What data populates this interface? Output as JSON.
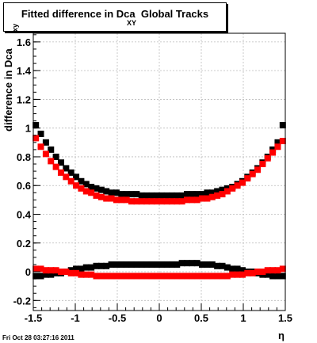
{
  "title": {
    "main": "Fitted difference in Dca  Global Tracks",
    "sub": "XY"
  },
  "footer": "Fri Oct 28 03:27:16 2011",
  "colors": {
    "series_a": "#000000",
    "series_b": "#ff0000",
    "grid": "#bbbbbb"
  },
  "chart_data": {
    "type": "scatter",
    "title": "Fitted difference in Dca XY Global Tracks",
    "xlabel": "η",
    "ylabel": "difference in Dca",
    "ylabel_sub": "xy",
    "xlim": [
      -1.5,
      1.5
    ],
    "ylim": [
      -0.27,
      1.66
    ],
    "grid": true,
    "x_ticks": [
      -1.5,
      -1,
      -0.5,
      0,
      0.5,
      1,
      1.5
    ],
    "x_tick_labels": [
      "-1.5",
      "-1",
      "-0.5",
      "0",
      "0.5",
      "1",
      "1.5"
    ],
    "y_ticks": [
      -0.2,
      0,
      0.2,
      0.4,
      0.6,
      0.8,
      1,
      1.2,
      1.4,
      1.6
    ],
    "y_tick_labels": [
      "-0.2",
      "0",
      "0.2",
      "0.4",
      "0.6",
      "0.8",
      "1",
      "1.2",
      "1.4",
      "1.6"
    ],
    "x": [
      -1.47,
      -1.41,
      -1.35,
      -1.29,
      -1.23,
      -1.17,
      -1.11,
      -1.05,
      -0.99,
      -0.93,
      -0.87,
      -0.81,
      -0.75,
      -0.69,
      -0.63,
      -0.57,
      -0.51,
      -0.45,
      -0.39,
      -0.33,
      -0.27,
      -0.21,
      -0.15,
      -0.09,
      -0.03,
      0.03,
      0.09,
      0.15,
      0.21,
      0.27,
      0.33,
      0.39,
      0.45,
      0.51,
      0.57,
      0.63,
      0.69,
      0.75,
      0.81,
      0.87,
      0.93,
      0.99,
      1.05,
      1.11,
      1.17,
      1.23,
      1.29,
      1.35,
      1.41,
      1.47
    ],
    "series": [
      {
        "color": "#000000",
        "values": [
          1.02,
          0.96,
          0.9,
          0.85,
          0.8,
          0.76,
          0.72,
          0.69,
          0.66,
          0.63,
          0.61,
          0.59,
          0.58,
          0.57,
          0.56,
          0.55,
          0.55,
          0.54,
          0.54,
          0.54,
          0.54,
          0.53,
          0.53,
          0.53,
          0.53,
          0.53,
          0.53,
          0.53,
          0.53,
          0.53,
          0.54,
          0.54,
          0.54,
          0.54,
          0.55,
          0.55,
          0.56,
          0.57,
          0.58,
          0.59,
          0.61,
          0.63,
          0.66,
          0.69,
          0.72,
          0.76,
          0.8,
          0.85,
          0.9,
          1.02
        ]
      },
      {
        "color": "#ff0000",
        "values": [
          0.93,
          0.87,
          0.82,
          0.77,
          0.73,
          0.69,
          0.66,
          0.63,
          0.6,
          0.58,
          0.56,
          0.55,
          0.53,
          0.52,
          0.51,
          0.51,
          0.5,
          0.5,
          0.5,
          0.49,
          0.49,
          0.49,
          0.49,
          0.49,
          0.49,
          0.49,
          0.49,
          0.49,
          0.49,
          0.49,
          0.5,
          0.5,
          0.5,
          0.51,
          0.51,
          0.52,
          0.53,
          0.54,
          0.56,
          0.58,
          0.6,
          0.62,
          0.65,
          0.68,
          0.71,
          0.75,
          0.79,
          0.83,
          0.87,
          0.91
        ]
      },
      {
        "color": "#000000",
        "values": [
          -0.03,
          -0.03,
          -0.02,
          -0.02,
          -0.01,
          -0.01,
          0.0,
          0.01,
          0.02,
          0.02,
          0.03,
          0.03,
          0.04,
          0.04,
          0.04,
          0.05,
          0.05,
          0.05,
          0.05,
          0.05,
          0.05,
          0.05,
          0.05,
          0.05,
          0.05,
          0.05,
          0.05,
          0.05,
          0.05,
          0.06,
          0.06,
          0.06,
          0.06,
          0.05,
          0.05,
          0.05,
          0.04,
          0.04,
          0.03,
          0.02,
          0.02,
          0.01,
          0.0,
          0.0,
          -0.01,
          -0.02,
          -0.02,
          -0.03,
          -0.03,
          -0.03
        ]
      },
      {
        "color": "#ff0000",
        "values": [
          0.02,
          0.02,
          0.01,
          0.01,
          0.01,
          0.0,
          0.0,
          -0.01,
          -0.01,
          -0.02,
          -0.02,
          -0.02,
          -0.03,
          -0.03,
          -0.03,
          -0.03,
          -0.03,
          -0.03,
          -0.03,
          -0.03,
          -0.03,
          -0.03,
          -0.03,
          -0.03,
          -0.03,
          -0.03,
          -0.03,
          -0.03,
          -0.03,
          -0.03,
          -0.03,
          -0.03,
          -0.03,
          -0.03,
          -0.03,
          -0.03,
          -0.03,
          -0.03,
          -0.03,
          -0.02,
          -0.02,
          -0.02,
          -0.01,
          -0.01,
          0.0,
          0.0,
          0.01,
          0.01,
          0.01,
          0.02
        ]
      }
    ]
  }
}
